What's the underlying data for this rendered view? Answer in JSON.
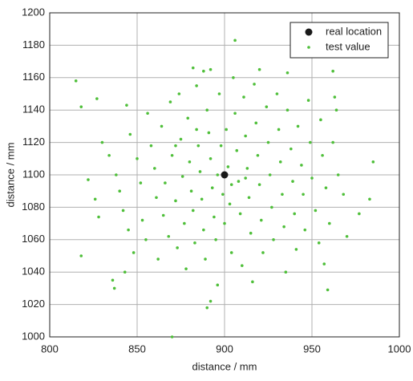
{
  "chart_data": {
    "type": "scatter",
    "xlabel": "distance / mm",
    "ylabel": "distance / mm",
    "xlim": [
      800,
      1000
    ],
    "ylim": [
      1000,
      1200
    ],
    "xticks": [
      800,
      850,
      900,
      950,
      1000
    ],
    "yticks": [
      1000,
      1020,
      1040,
      1060,
      1080,
      1100,
      1120,
      1140,
      1160,
      1180,
      1200
    ],
    "grid": true,
    "legend": "upper right",
    "series": [
      {
        "name": "real location",
        "color": "#1a1a1a",
        "x": [
          900
        ],
        "y": [
          1100
        ]
      },
      {
        "name": "test value",
        "color": "#4fbf3a",
        "x": [
          815,
          818,
          827,
          818,
          836,
          837,
          870,
          890,
          892,
          906,
          959,
          985,
          983,
          977,
          964,
          963,
          962,
          888,
          882,
          892,
          920,
          936,
          957,
          844,
          843,
          848,
          822,
          826,
          828,
          830,
          834,
          838,
          840,
          842,
          845,
          846,
          850,
          852,
          853,
          855,
          856,
          858,
          860,
          861,
          862,
          864,
          865,
          866,
          868,
          869,
          870,
          872,
          873,
          874,
          875,
          876,
          877,
          878,
          879,
          880,
          881,
          882,
          883,
          884,
          885,
          886,
          887,
          888,
          889,
          890,
          891,
          892,
          893,
          894,
          895,
          896,
          897,
          898,
          899,
          900,
          901,
          902,
          903,
          904,
          905,
          906,
          907,
          908,
          909,
          910,
          911,
          912,
          913,
          914,
          915,
          916,
          917,
          918,
          919,
          920,
          921,
          922,
          924,
          925,
          926,
          927,
          928,
          930,
          931,
          932,
          933,
          934,
          935,
          936,
          938,
          939,
          940,
          941,
          942,
          944,
          945,
          946,
          948,
          949,
          950,
          952,
          954,
          955,
          956,
          958,
          960,
          962,
          965,
          968,
          970,
          872,
          884,
          896,
          904,
          912
        ],
        "y": [
          1158,
          1142,
          1147,
          1050,
          1035,
          1030,
          1000,
          1018,
          1022,
          1183,
          1029,
          1108,
          1085,
          1076,
          1140,
          1148,
          1164,
          1164,
          1166,
          1165,
          1165,
          1163,
          1045,
          1143,
          1040,
          1052,
          1097,
          1085,
          1074,
          1120,
          1112,
          1100,
          1090,
          1078,
          1066,
          1125,
          1110,
          1095,
          1072,
          1060,
          1138,
          1118,
          1104,
          1086,
          1048,
          1130,
          1075,
          1095,
          1062,
          1145,
          1112,
          1084,
          1055,
          1150,
          1122,
          1099,
          1070,
          1042,
          1135,
          1108,
          1090,
          1078,
          1058,
          1155,
          1118,
          1102,
          1085,
          1066,
          1048,
          1140,
          1126,
          1110,
          1092,
          1074,
          1060,
          1032,
          1150,
          1118,
          1088,
          1070,
          1128,
          1105,
          1082,
          1052,
          1160,
          1138,
          1115,
          1096,
          1076,
          1044,
          1148,
          1124,
          1104,
          1086,
          1064,
          1034,
          1156,
          1132,
          1112,
          1094,
          1072,
          1052,
          1142,
          1120,
          1100,
          1080,
          1060,
          1150,
          1128,
          1108,
          1088,
          1068,
          1040,
          1140,
          1116,
          1096,
          1076,
          1054,
          1130,
          1106,
          1088,
          1066,
          1146,
          1120,
          1098,
          1078,
          1058,
          1134,
          1112,
          1092,
          1070,
          1120,
          1100,
          1088,
          1062,
          1118,
          1128,
          1100,
          1094,
          1098
        ]
      }
    ]
  }
}
